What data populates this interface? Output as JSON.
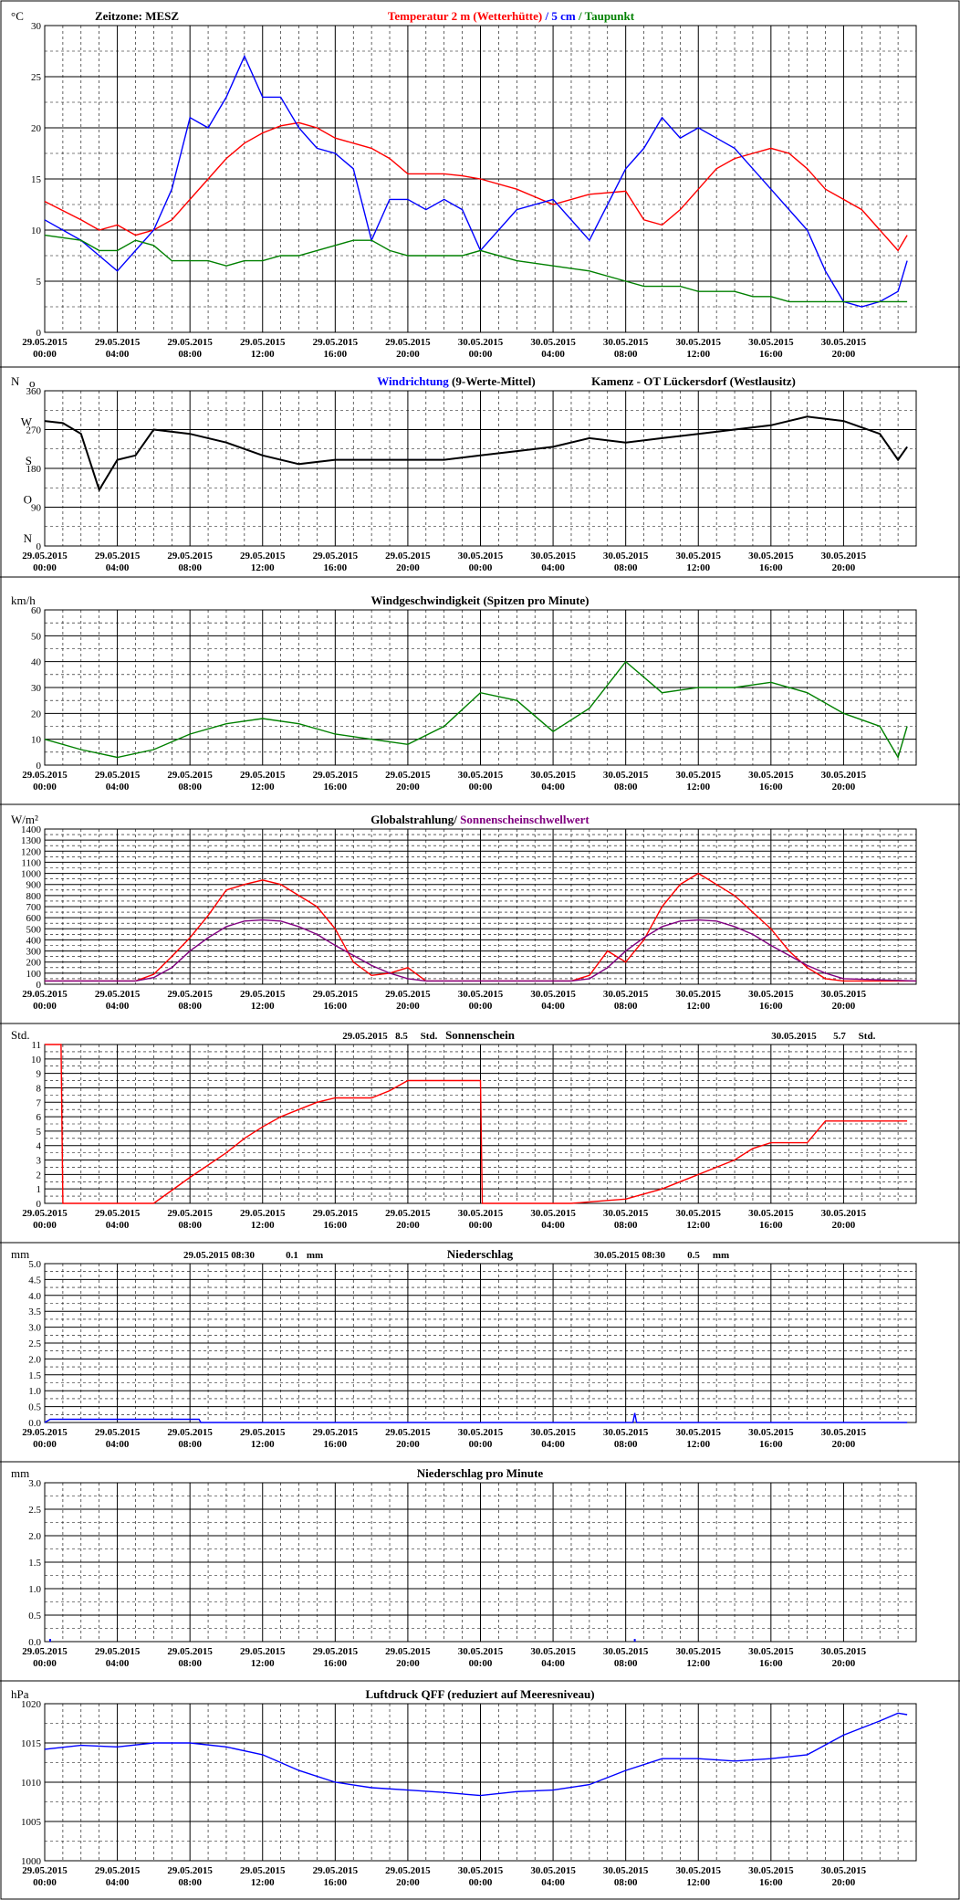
{
  "x_ticks": [
    {
      "date": "29.05.2015",
      "time": "00:00"
    },
    {
      "date": "29.05.2015",
      "time": "04:00"
    },
    {
      "date": "29.05.2015",
      "time": "08:00"
    },
    {
      "date": "29.05.2015",
      "time": "12:00"
    },
    {
      "date": "29.05.2015",
      "time": "16:00"
    },
    {
      "date": "29.05.2015",
      "time": "20:00"
    },
    {
      "date": "30.05.2015",
      "time": "00:00"
    },
    {
      "date": "30.05.2015",
      "time": "04:00"
    },
    {
      "date": "30.05.2015",
      "time": "08:00"
    },
    {
      "date": "30.05.2015",
      "time": "12:00"
    },
    {
      "date": "30.05.2015",
      "time": "16:00"
    },
    {
      "date": "30.05.2015",
      "time": "20:00"
    }
  ],
  "colors": {
    "red": "#ff0000",
    "blue": "#0000ff",
    "green": "#008000",
    "purple": "#800080",
    "grid": "#000000"
  },
  "chart_data": [
    {
      "id": "temp",
      "type": "line",
      "unit": "°C",
      "timezone": "Zeitzone: MESZ",
      "title_parts": [
        {
          "text": "Temperatur 2 m (Wetterhütte)",
          "color": "#ff0000"
        },
        {
          "text": " / ",
          "color": "#0000ff"
        },
        {
          "text": "5 cm",
          "color": "#0000ff"
        },
        {
          "text": " / ",
          "color": "#008000"
        },
        {
          "text": "Taupunkt",
          "color": "#008000"
        }
      ],
      "ylim": [
        0,
        30
      ],
      "yticks": [
        0,
        5,
        10,
        15,
        20,
        25,
        30
      ],
      "x_hours": [
        0,
        2,
        3,
        4,
        5,
        6,
        7,
        8,
        9,
        10,
        11,
        12,
        13,
        14,
        15,
        16,
        17,
        18,
        19,
        20,
        21,
        22,
        23,
        24,
        26,
        28,
        30,
        32,
        33,
        34,
        35,
        36,
        37,
        38,
        39,
        40,
        41,
        42,
        43,
        44,
        45,
        46,
        47,
        47.5
      ],
      "series": [
        {
          "name": "Temperatur 2 m",
          "color": "#ff0000",
          "values": [
            12.8,
            11,
            10,
            10.5,
            9.5,
            10,
            11,
            13,
            15,
            17,
            18.5,
            19.5,
            20.2,
            20.5,
            20,
            19,
            18.5,
            18,
            17,
            15.5,
            15.5,
            15.5,
            15.3,
            15,
            14,
            12.5,
            13.5,
            13.8,
            11,
            10.5,
            12,
            14,
            16,
            17,
            17.5,
            18,
            17.5,
            16,
            14,
            13,
            12,
            10,
            8,
            9.5
          ]
        },
        {
          "name": "5 cm",
          "color": "#0000ff",
          "values": [
            11,
            9,
            7.5,
            6,
            8,
            10,
            14,
            21,
            20,
            23,
            27,
            23,
            23,
            20,
            18,
            17.5,
            16,
            9,
            13,
            13,
            12,
            13,
            12,
            8,
            12,
            13,
            9,
            16,
            18,
            21,
            19,
            20,
            19,
            18,
            16,
            14,
            12,
            10,
            6,
            3,
            2.5,
            3,
            4,
            7
          ]
        },
        {
          "name": "Taupunkt",
          "color": "#008000",
          "values": [
            9.5,
            9,
            8,
            8,
            9,
            8.5,
            7,
            7,
            7,
            6.5,
            7,
            7,
            7.5,
            7.5,
            8,
            8.5,
            9,
            9,
            8,
            7.5,
            7.5,
            7.5,
            7.5,
            8,
            7,
            6.5,
            6,
            5,
            4.5,
            4.5,
            4.5,
            4,
            4,
            4,
            3.5,
            3.5,
            3,
            3,
            3,
            3,
            3,
            3,
            3,
            3
          ]
        }
      ]
    },
    {
      "id": "winddir",
      "type": "line",
      "unit": "N",
      "extra_unit": "o",
      "title_parts": [
        {
          "text": "Windrichtung",
          "color": "#0000ff"
        },
        {
          "text": " (9-Werte-Mittel)",
          "color": "#000000"
        }
      ],
      "station": "Kamenz - OT Lückersdorf (Westlausitz)",
      "ylim": [
        0,
        360
      ],
      "yticks": [
        0,
        90,
        180,
        270,
        360
      ],
      "compass": [
        {
          "label": "W",
          "value": 270
        },
        {
          "label": "S",
          "value": 180
        },
        {
          "label": "O",
          "value": 90
        },
        {
          "label": "N",
          "value": 0
        }
      ],
      "x_hours": [
        0,
        1,
        2,
        3,
        4,
        5,
        6,
        8,
        10,
        12,
        14,
        16,
        18,
        20,
        22,
        24,
        26,
        28,
        30,
        32,
        34,
        36,
        38,
        40,
        42,
        44,
        46,
        47,
        47.5
      ],
      "series": [
        {
          "name": "Windrichtung",
          "color": "#0000ff",
          "values": [
            290,
            285,
            260,
            130,
            200,
            210,
            270,
            260,
            240,
            210,
            190,
            200,
            200,
            200,
            200,
            210,
            220,
            230,
            250,
            240,
            250,
            260,
            270,
            280,
            300,
            290,
            260,
            200,
            230
          ]
        },
        {
          "name": "Mittel",
          "color": "#000000",
          "values": [
            290,
            285,
            260,
            130,
            200,
            210,
            270,
            260,
            240,
            210,
            190,
            200,
            200,
            200,
            200,
            210,
            220,
            230,
            250,
            240,
            250,
            260,
            270,
            280,
            300,
            290,
            260,
            200,
            230
          ]
        }
      ]
    },
    {
      "id": "windspeed",
      "type": "line",
      "unit": "km/h",
      "title_parts": [
        {
          "text": "Windgeschwindigkeit (Spitzen pro Minute)",
          "color": "#000000"
        }
      ],
      "ylim": [
        0,
        60
      ],
      "yticks": [
        0,
        10,
        20,
        30,
        40,
        50,
        60
      ],
      "x_hours": [
        0,
        2,
        4,
        6,
        8,
        10,
        12,
        14,
        16,
        18,
        20,
        22,
        24,
        26,
        28,
        30,
        32,
        34,
        36,
        38,
        40,
        42,
        44,
        46,
        47,
        47.5
      ],
      "series": [
        {
          "name": "Windgeschwindigkeit",
          "color": "#008000",
          "values": [
            10,
            6,
            3,
            6,
            12,
            16,
            18,
            16,
            12,
            10,
            8,
            15,
            28,
            25,
            13,
            22,
            40,
            28,
            30,
            30,
            32,
            28,
            20,
            15,
            3,
            15
          ]
        }
      ]
    },
    {
      "id": "radiation",
      "type": "line",
      "unit": "W/m²",
      "title_parts": [
        {
          "text": "Globalstrahlung",
          "color": "#000000"
        },
        {
          "text": "/ ",
          "color": "#000000"
        },
        {
          "text": "Sonnenscheinschwellwert",
          "color": "#800080"
        }
      ],
      "ylim": [
        0,
        1400
      ],
      "yticks": [
        0,
        100,
        200,
        300,
        400,
        500,
        600,
        700,
        800,
        900,
        1000,
        1100,
        1200,
        1300,
        1400
      ],
      "x_hours": [
        0,
        5,
        6,
        7,
        8,
        9,
        10,
        11,
        12,
        13,
        14,
        15,
        16,
        17,
        18,
        19,
        20,
        21,
        24,
        29,
        30,
        31,
        32,
        33,
        34,
        35,
        36,
        37,
        38,
        39,
        40,
        41,
        42,
        43,
        44,
        48
      ],
      "series": [
        {
          "name": "Globalstrahlung",
          "color": "#ff0000",
          "values": [
            30,
            30,
            90,
            250,
            420,
            620,
            850,
            900,
            940,
            900,
            800,
            700,
            500,
            200,
            80,
            100,
            150,
            30,
            30,
            30,
            80,
            300,
            200,
            400,
            700,
            900,
            1000,
            900,
            800,
            650,
            500,
            300,
            150,
            50,
            30,
            30
          ]
        },
        {
          "name": "Sonnenscheinschwellwert",
          "color": "#800080",
          "values": [
            30,
            30,
            60,
            150,
            300,
            420,
            520,
            570,
            580,
            570,
            520,
            450,
            350,
            260,
            170,
            100,
            50,
            30,
            30,
            30,
            50,
            150,
            300,
            420,
            520,
            570,
            580,
            570,
            520,
            450,
            350,
            260,
            170,
            100,
            50,
            30
          ]
        }
      ]
    },
    {
      "id": "sunshine",
      "type": "line",
      "unit": "Std.",
      "title_parts": [
        {
          "text": "Sonnenschein",
          "color": "#000000"
        }
      ],
      "summary": [
        {
          "date": "29.05.2015",
          "value": "8.5",
          "unit": "Std."
        },
        {
          "date": "30.05.2015",
          "value": "5.7",
          "unit": "Std."
        }
      ],
      "ylim": [
        0,
        11
      ],
      "yticks": [
        0.0,
        1.0,
        2.0,
        3.0,
        4.0,
        5.0,
        6.0,
        7.0,
        8.0,
        9.0,
        10.0,
        11.0
      ],
      "x_hours": [
        0,
        0.9,
        1,
        6,
        8,
        10,
        11,
        12,
        13,
        14,
        15,
        16,
        18,
        19,
        20,
        24,
        24.1,
        29,
        31,
        32,
        34,
        36,
        38,
        39,
        40,
        42,
        43,
        47.5
      ],
      "series": [
        {
          "name": "Sonnenschein",
          "color": "#ff0000",
          "values": [
            11,
            11,
            0,
            0,
            1.8,
            3.5,
            4.5,
            5.3,
            6,
            6.5,
            7,
            7.3,
            7.3,
            7.8,
            8.5,
            8.5,
            0,
            0,
            0.2,
            0.3,
            1,
            2,
            3,
            3.8,
            4.2,
            4.2,
            5.7,
            5.7
          ]
        }
      ]
    },
    {
      "id": "precip",
      "type": "line",
      "unit": "mm",
      "title_parts": [
        {
          "text": "Niederschlag",
          "color": "#000000"
        }
      ],
      "summary": [
        {
          "date": "29.05.2015 08:30",
          "value": "0.1",
          "unit": "mm"
        },
        {
          "date": "30.05.2015 08:30",
          "value": "0.5",
          "unit": "mm"
        }
      ],
      "ylim": [
        0,
        5
      ],
      "yticks": [
        0.0,
        0.5,
        1.0,
        1.5,
        2.0,
        2.5,
        3.0,
        3.5,
        4.0,
        4.5,
        5.0
      ],
      "x_hours": [
        0,
        0.3,
        8.5,
        8.6,
        32.4,
        32.5,
        32.6,
        47.5
      ],
      "series": [
        {
          "name": "Niederschlag",
          "color": "#0000ff",
          "values": [
            0,
            0.1,
            0.1,
            0,
            0,
            0.3,
            0,
            0
          ]
        }
      ]
    },
    {
      "id": "precipmin",
      "type": "bar",
      "unit": "mm",
      "title_parts": [
        {
          "text": "Niederschlag pro Minute",
          "color": "#000000"
        }
      ],
      "ylim": [
        0,
        3
      ],
      "yticks": [
        0.0,
        0.5,
        1.0,
        1.5,
        2.0,
        2.5,
        3.0
      ],
      "x_hours": [
        0.3,
        32.5
      ],
      "series": [
        {
          "name": "Niederschlag pro Minute",
          "color": "#0000ff",
          "values": [
            0.05,
            0.05
          ]
        }
      ]
    },
    {
      "id": "pressure",
      "type": "line",
      "unit": "hPa",
      "title_parts": [
        {
          "text": "Luftdruck QFF (reduziert auf Meeresniveau)",
          "color": "#000000"
        }
      ],
      "ylim": [
        1000,
        1020
      ],
      "yticks": [
        1000,
        1005,
        1010,
        1015,
        1020
      ],
      "x_hours": [
        0,
        2,
        4,
        6,
        8,
        10,
        12,
        14,
        16,
        18,
        20,
        22,
        24,
        26,
        28,
        30,
        32,
        34,
        36,
        38,
        40,
        42,
        44,
        46,
        47,
        47.5
      ],
      "series": [
        {
          "name": "Luftdruck",
          "color": "#0000ff",
          "values": [
            1014.2,
            1014.7,
            1014.5,
            1015,
            1015,
            1014.5,
            1013.5,
            1011.5,
            1010,
            1009.3,
            1009,
            1008.7,
            1008.3,
            1008.8,
            1009,
            1009.7,
            1011.5,
            1013,
            1013,
            1012.7,
            1013,
            1013.5,
            1016,
            1017.8,
            1018.8,
            1018.6
          ]
        }
      ]
    }
  ]
}
